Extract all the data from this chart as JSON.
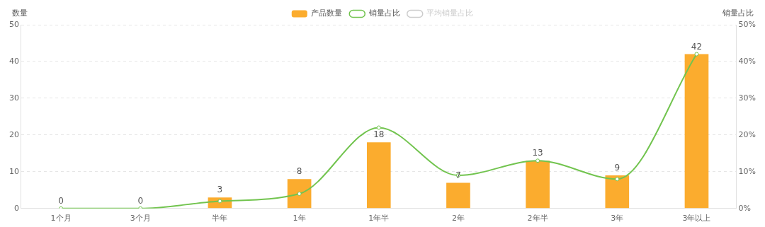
{
  "chart_data": {
    "type": "bar",
    "categories": [
      "1个月",
      "3个月",
      "半年",
      "1年",
      "1年半",
      "2年",
      "2年半",
      "3年",
      "3年以上"
    ],
    "series": [
      {
        "name": "产品数量",
        "color": "#fbac2e",
        "values": [
          0,
          0,
          3,
          8,
          18,
          7,
          13,
          9,
          42
        ],
        "value_labels": [
          "0",
          "0",
          "3",
          "8",
          "18",
          "7",
          "13",
          "9",
          "42"
        ]
      },
      {
        "name": "销量占比",
        "type": "line",
        "axis": "y2",
        "color": "#72c44f",
        "marker": "circle",
        "values": [
          0,
          0,
          2,
          4,
          22,
          9,
          13,
          8,
          42
        ]
      },
      {
        "name": "平均销量占比",
        "type": "line",
        "axis": "y2",
        "color": "#cccccc",
        "marker": "circle",
        "values": [
          null,
          null,
          null,
          null,
          null,
          null,
          null,
          null,
          null
        ]
      }
    ],
    "ylabel": "数量",
    "y2label": "销量占比",
    "ylim": [
      0,
      50
    ],
    "yticks": [
      0,
      10,
      20,
      30,
      40,
      50
    ],
    "y2lim": [
      0,
      50
    ],
    "y2ticks": [
      {
        "value": 0,
        "label": "0%"
      },
      {
        "value": 10,
        "label": "10%"
      },
      {
        "value": 20,
        "label": "20%"
      },
      {
        "value": 30,
        "label": "30%"
      },
      {
        "value": 40,
        "label": "40%"
      },
      {
        "value": 50,
        "label": "50%"
      }
    ],
    "grid": "y",
    "legend": "top"
  }
}
